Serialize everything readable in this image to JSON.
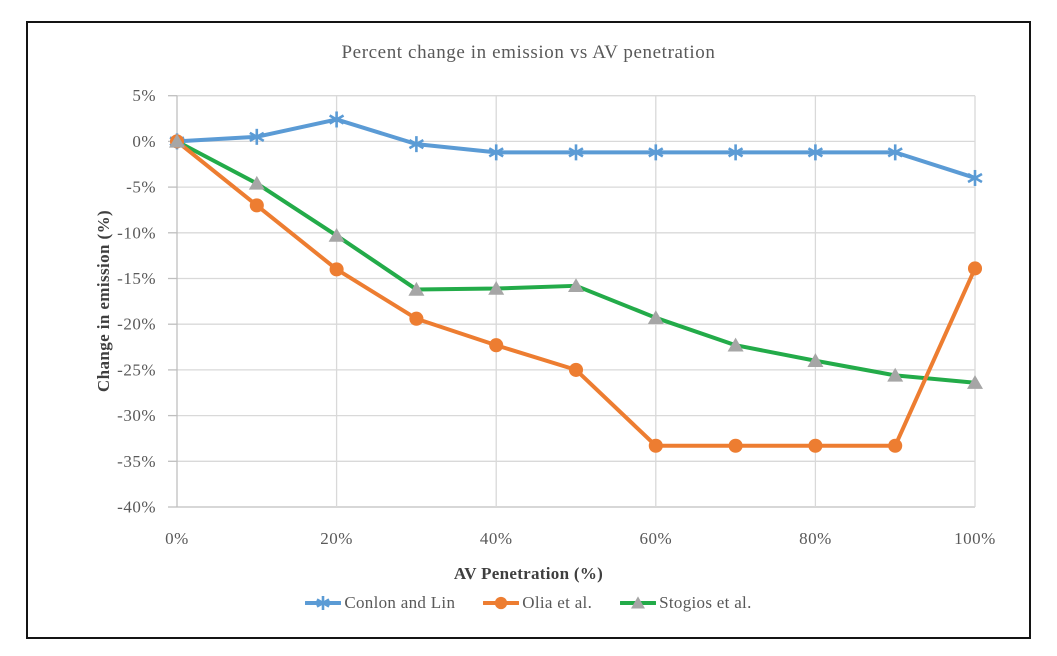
{
  "figure": {
    "title": "Percent change in emission vs AV penetration",
    "x_axis_title": "AV Penetration (%)",
    "y_axis_title": "Change in emission (%)"
  },
  "chart_data": {
    "type": "line",
    "title": "Percent change in emission vs AV penetration",
    "xlabel": "AV Penetration (%)",
    "ylabel": "Change in emission (%)",
    "x": [
      0,
      10,
      20,
      30,
      40,
      50,
      60,
      70,
      80,
      90,
      100
    ],
    "x_tick_values": [
      0,
      20,
      40,
      60,
      80,
      100
    ],
    "x_tick_labels": [
      "0%",
      "20%",
      "40%",
      "60%",
      "80%",
      "100%"
    ],
    "y_tick_values": [
      5,
      0,
      -5,
      -10,
      -15,
      -20,
      -25,
      -30,
      -35,
      -40
    ],
    "y_tick_labels": [
      "5%",
      "0%",
      "-5%",
      "-10%",
      "-15%",
      "-20%",
      "-25%",
      "-30%",
      "-35%",
      "-40%"
    ],
    "xlim": [
      0,
      100
    ],
    "ylim": [
      -40,
      5
    ],
    "grid": {
      "horizontal_step": 5,
      "vertical_step": 20,
      "gridline_color": "#D9D9D9",
      "axis_line_color": "#BFBFBF"
    },
    "legend_position": "bottom",
    "series": [
      {
        "name": "Conlon and Lin",
        "color": "#5B9BD5",
        "marker": "asterisk",
        "marker_color": "#5B9BD5",
        "values": [
          0,
          0.5,
          2.4,
          -0.3,
          -1.2,
          -1.2,
          -1.2,
          -1.2,
          -1.2,
          -1.2,
          -4.0
        ]
      },
      {
        "name": "Olia et al.",
        "color": "#ED7D31",
        "marker": "circle",
        "marker_color": "#ED7D31",
        "values": [
          0,
          -7.0,
          -14.0,
          -19.4,
          -22.3,
          -25.0,
          -33.3,
          -33.3,
          -33.3,
          -33.3,
          -13.9
        ]
      },
      {
        "name": "Stogios et al.",
        "color": "#23AB49",
        "marker": "triangle",
        "marker_color": "#A6A6A6",
        "values": [
          0,
          -4.6,
          -10.3,
          -16.2,
          -16.1,
          -15.8,
          -19.3,
          -22.3,
          -24.0,
          -25.6,
          -26.4
        ]
      }
    ],
    "text_colors": {
      "title": "#595959",
      "tick_label": "#595959",
      "axis_title": "#3F3F3F"
    }
  }
}
